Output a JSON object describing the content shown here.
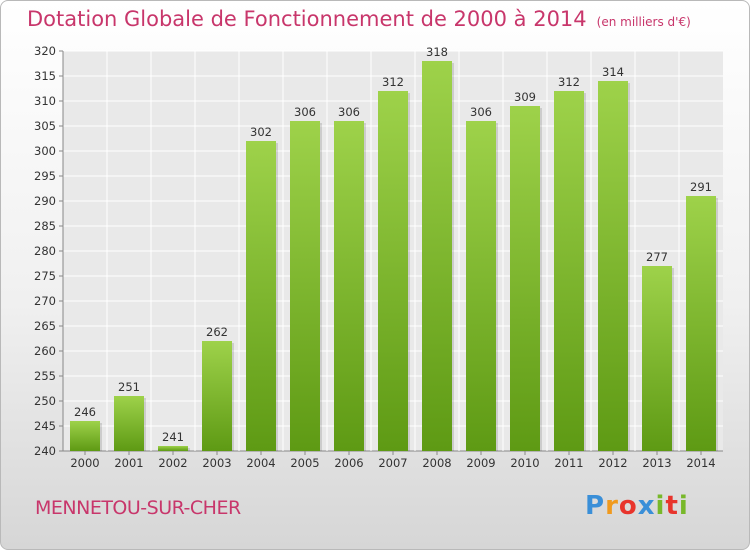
{
  "title": "Dotation Globale de Fonctionnement de 2000 à 2014",
  "unit_note": "(en milliers d'€)",
  "commune": "MENNETOU-SUR-CHER",
  "logo": {
    "letters": [
      "P",
      "r",
      "o",
      "x",
      "i",
      "t",
      "i"
    ],
    "colors": [
      "#3a8fd8",
      "#f09a1e",
      "#e8342c",
      "#3a8fd8",
      "#78b82a",
      "#e8342c",
      "#78b82a"
    ]
  },
  "chart_data": {
    "type": "bar",
    "title": "Dotation Globale de Fonctionnement de 2000 à 2014",
    "categories": [
      "2000",
      "2001",
      "2002",
      "2003",
      "2004",
      "2005",
      "2006",
      "2007",
      "2008",
      "2009",
      "2010",
      "2011",
      "2012",
      "2013",
      "2014"
    ],
    "values": [
      246,
      251,
      241,
      262,
      302,
      306,
      306,
      312,
      318,
      306,
      309,
      312,
      314,
      277,
      291
    ],
    "ylim": [
      240,
      320
    ],
    "yticks": [
      240,
      245,
      250,
      255,
      260,
      265,
      270,
      275,
      280,
      285,
      290,
      295,
      300,
      305,
      310,
      315,
      320
    ],
    "grid": true,
    "bar_color_light": "#9ed24a",
    "bar_color_dark": "#5e9a14"
  }
}
